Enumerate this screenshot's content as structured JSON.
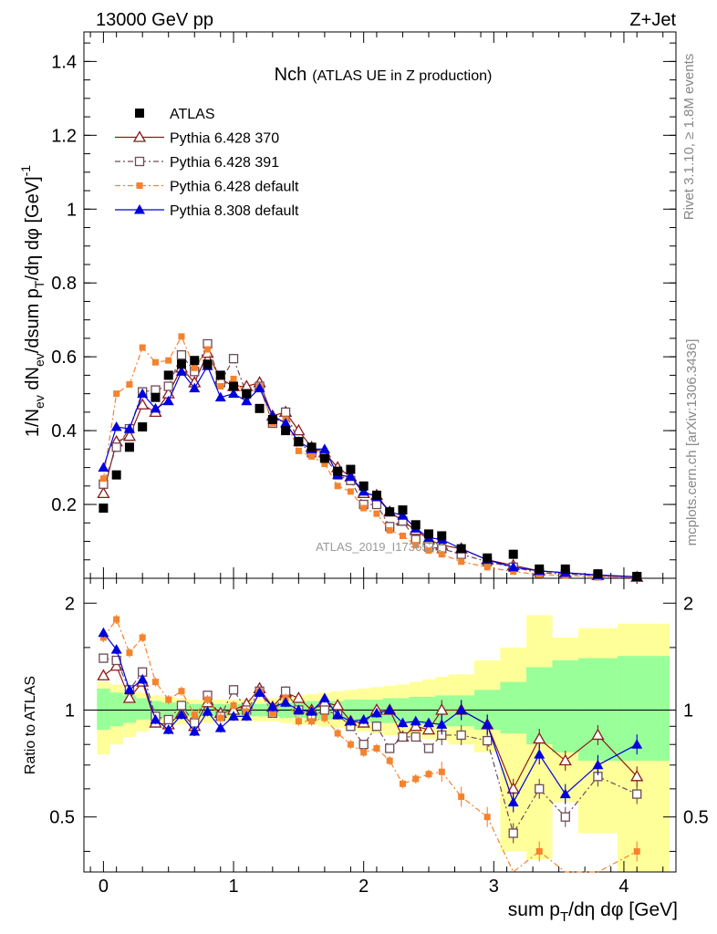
{
  "header": {
    "energy_label": "13000 GeV pp",
    "process_label": "Z+Jet",
    "title_main": "Nch",
    "title_sub": "(ATLAS UE in Z production)",
    "watermark": "ATLAS_2019_I1736531"
  },
  "side_labels": {
    "rivet": "Rivet 3.1.10, ≥ 1.8M events",
    "mcplots": "mcplots.cern.ch [arXiv:1306.3436]"
  },
  "axes": {
    "ylabel_main": "1/N_ev dN_ev/dsum p_T/dη dφ [GeV]^-1",
    "ylabel_ratio": "Ratio to ATLAS",
    "xlabel": "sum p_T/dη dφ [GeV]"
  },
  "colors": {
    "atlas": "#000000",
    "p6_370": "#8b1a1a",
    "p6_391": "#6e4a55",
    "p6_default": "#f5822d",
    "p8": "#0000dd",
    "band_inner": "#99ff99",
    "band_outer": "#ffff99"
  },
  "chart_data": {
    "type": "scatter",
    "x": [
      0.0,
      0.1,
      0.2,
      0.3,
      0.4,
      0.5,
      0.6,
      0.7,
      0.8,
      0.9,
      1.0,
      1.1,
      1.2,
      1.3,
      1.4,
      1.5,
      1.6,
      1.7,
      1.8,
      1.9,
      2.0,
      2.1,
      2.2,
      2.3,
      2.4,
      2.5,
      2.6,
      2.75,
      2.95,
      3.15,
      3.35,
      3.55,
      3.8,
      4.1
    ],
    "xlim": [
      -0.15,
      4.4
    ],
    "ylim": [
      0,
      1.48
    ],
    "ratio_ylim": [
      0.35,
      2.35
    ],
    "x_ticks": [
      "0",
      "1",
      "2",
      "3",
      "4"
    ],
    "y_ticks": [
      "0.2",
      "0.4",
      "0.6",
      "0.8",
      "1",
      "1.2",
      "1.4"
    ],
    "ratio_ticks": [
      "0.5",
      "1",
      "2"
    ],
    "series": [
      {
        "name": "ATLAS",
        "key": "atlas",
        "marker": "square-filled",
        "values": [
          0.19,
          0.28,
          0.355,
          0.41,
          0.49,
          0.55,
          0.58,
          0.59,
          0.58,
          0.55,
          0.52,
          0.5,
          0.46,
          0.43,
          0.4,
          0.37,
          0.355,
          0.325,
          0.29,
          0.295,
          0.25,
          0.225,
          0.18,
          0.185,
          0.145,
          0.12,
          0.115,
          0.08,
          0.055,
          0.065,
          0.025,
          0.025,
          0.012,
          0.005
        ]
      },
      {
        "name": "Pythia 6.428 370",
        "key": "p6_370",
        "marker": "triangle-open",
        "dash": "",
        "values": [
          0.23,
          0.37,
          0.385,
          0.47,
          0.45,
          0.5,
          0.57,
          0.53,
          0.61,
          0.54,
          0.52,
          0.52,
          0.53,
          0.44,
          0.45,
          0.4,
          0.355,
          0.34,
          0.3,
          0.275,
          0.23,
          0.225,
          0.18,
          0.155,
          0.13,
          0.105,
          0.09,
          0.08,
          0.05,
          0.035,
          0.02,
          0.015,
          0.008,
          0.003
        ]
      },
      {
        "name": "Pythia 6.428 391",
        "key": "p6_391",
        "marker": "square-open",
        "dash": "6,3,2,3",
        "values": [
          0.255,
          0.355,
          0.405,
          0.505,
          0.51,
          0.52,
          0.605,
          0.56,
          0.635,
          0.53,
          0.595,
          0.5,
          0.52,
          0.42,
          0.45,
          0.37,
          0.34,
          0.33,
          0.28,
          0.265,
          0.2,
          0.2,
          0.14,
          0.155,
          0.105,
          0.085,
          0.08,
          0.065,
          0.045,
          0.03,
          0.015,
          0.012,
          0.007,
          0.003
        ]
      },
      {
        "name": "Pythia 6.428 default",
        "key": "p6_default",
        "marker": "square-small",
        "dash": "6,3,2,3",
        "values": [
          0.27,
          0.5,
          0.525,
          0.625,
          0.585,
          0.59,
          0.655,
          0.57,
          0.62,
          0.52,
          0.54,
          0.495,
          0.52,
          0.42,
          0.43,
          0.345,
          0.33,
          0.31,
          0.25,
          0.235,
          0.19,
          0.175,
          0.13,
          0.115,
          0.09,
          0.075,
          0.065,
          0.045,
          0.03,
          0.018,
          0.01,
          0.008,
          0.004,
          0.002
        ]
      },
      {
        "name": "Pythia 8.308 default",
        "key": "p8",
        "marker": "triangle-filled",
        "dash": "",
        "values": [
          0.3,
          0.41,
          0.405,
          0.5,
          0.46,
          0.48,
          0.56,
          0.515,
          0.575,
          0.49,
          0.5,
          0.48,
          0.515,
          0.44,
          0.42,
          0.37,
          0.35,
          0.35,
          0.28,
          0.275,
          0.235,
          0.22,
          0.18,
          0.17,
          0.135,
          0.11,
          0.105,
          0.08,
          0.05,
          0.03,
          0.02,
          0.015,
          0.009,
          0.004
        ]
      }
    ],
    "ratio_series": [
      {
        "key": "p6_370",
        "values": [
          1.25,
          1.33,
          1.08,
          1.2,
          0.92,
          0.91,
          0.98,
          0.9,
          1.05,
          0.98,
          1.0,
          1.04,
          1.15,
          1.02,
          1.12,
          1.08,
          1.0,
          1.05,
          1.03,
          0.93,
          0.92,
          1.0,
          1.0,
          0.84,
          0.9,
          0.88,
          1.0,
          1.0,
          0.91,
          0.6,
          0.83,
          0.72,
          0.85,
          0.65
        ]
      },
      {
        "key": "p6_391",
        "values": [
          1.4,
          1.38,
          1.14,
          1.28,
          0.96,
          0.94,
          1.03,
          0.92,
          1.1,
          0.96,
          1.14,
          1.0,
          1.13,
          0.98,
          1.13,
          1.0,
          0.96,
          1.0,
          0.97,
          0.9,
          0.8,
          0.9,
          0.78,
          0.84,
          0.84,
          0.78,
          0.85,
          0.85,
          0.82,
          0.45,
          0.6,
          0.5,
          0.65,
          0.58
        ]
      },
      {
        "key": "p6_default",
        "values": [
          1.6,
          1.8,
          1.45,
          1.6,
          1.2,
          1.07,
          1.13,
          0.97,
          1.07,
          0.95,
          1.03,
          0.99,
          1.13,
          0.98,
          1.08,
          0.93,
          0.93,
          0.95,
          0.86,
          0.8,
          0.76,
          0.78,
          0.72,
          0.62,
          0.64,
          0.66,
          0.67,
          0.57,
          0.5,
          0.28,
          0.4,
          0.32,
          0.33,
          0.4
        ]
      },
      {
        "key": "p8",
        "values": [
          1.65,
          1.48,
          1.14,
          1.22,
          0.94,
          0.88,
          0.97,
          0.87,
          0.99,
          0.89,
          0.96,
          0.96,
          1.12,
          1.02,
          1.05,
          1.0,
          0.99,
          1.08,
          0.97,
          0.93,
          0.94,
          0.98,
          1.0,
          0.92,
          0.93,
          0.92,
          0.91,
          1.0,
          0.91,
          0.55,
          0.75,
          0.58,
          0.7,
          0.8
        ]
      }
    ],
    "uncertainty_band": {
      "edges": [
        -0.05,
        0.05,
        0.15,
        0.25,
        0.35,
        0.45,
        0.55,
        0.65,
        0.75,
        0.85,
        0.95,
        1.05,
        1.15,
        1.25,
        1.35,
        1.45,
        1.55,
        1.65,
        1.75,
        1.85,
        1.95,
        2.05,
        2.15,
        2.25,
        2.35,
        2.45,
        2.55,
        2.65,
        2.85,
        3.05,
        3.25,
        3.45,
        3.65,
        3.95,
        4.35
      ],
      "inner_low": [
        0.88,
        0.9,
        0.92,
        0.94,
        0.94,
        0.95,
        0.95,
        0.96,
        0.96,
        0.96,
        0.96,
        0.96,
        0.96,
        0.96,
        0.95,
        0.95,
        0.95,
        0.94,
        0.94,
        0.93,
        0.93,
        0.92,
        0.92,
        0.92,
        0.91,
        0.91,
        0.9,
        0.9,
        0.88,
        0.86,
        0.8,
        0.76,
        0.72,
        0.72
      ],
      "inner_high": [
        1.15,
        1.12,
        1.1,
        1.08,
        1.06,
        1.05,
        1.05,
        1.04,
        1.04,
        1.04,
        1.04,
        1.04,
        1.04,
        1.04,
        1.05,
        1.05,
        1.06,
        1.06,
        1.06,
        1.07,
        1.07,
        1.07,
        1.08,
        1.08,
        1.09,
        1.09,
        1.1,
        1.1,
        1.14,
        1.2,
        1.32,
        1.38,
        1.4,
        1.42
      ],
      "outer_low": [
        0.75,
        0.8,
        0.84,
        0.87,
        0.89,
        0.9,
        0.91,
        0.92,
        0.92,
        0.93,
        0.93,
        0.93,
        0.93,
        0.93,
        0.92,
        0.91,
        0.91,
        0.9,
        0.89,
        0.88,
        0.87,
        0.86,
        0.85,
        0.85,
        0.84,
        0.83,
        0.82,
        0.8,
        0.76,
        0.4,
        0.38,
        0.55,
        0.45,
        0.35
      ],
      "outer_high": [
        1.2,
        1.18,
        1.15,
        1.12,
        1.1,
        1.09,
        1.08,
        1.07,
        1.07,
        1.07,
        1.07,
        1.07,
        1.07,
        1.08,
        1.09,
        1.1,
        1.11,
        1.12,
        1.13,
        1.14,
        1.15,
        1.16,
        1.17,
        1.18,
        1.2,
        1.22,
        1.24,
        1.26,
        1.38,
        1.5,
        1.85,
        1.6,
        1.7,
        1.75
      ]
    }
  }
}
